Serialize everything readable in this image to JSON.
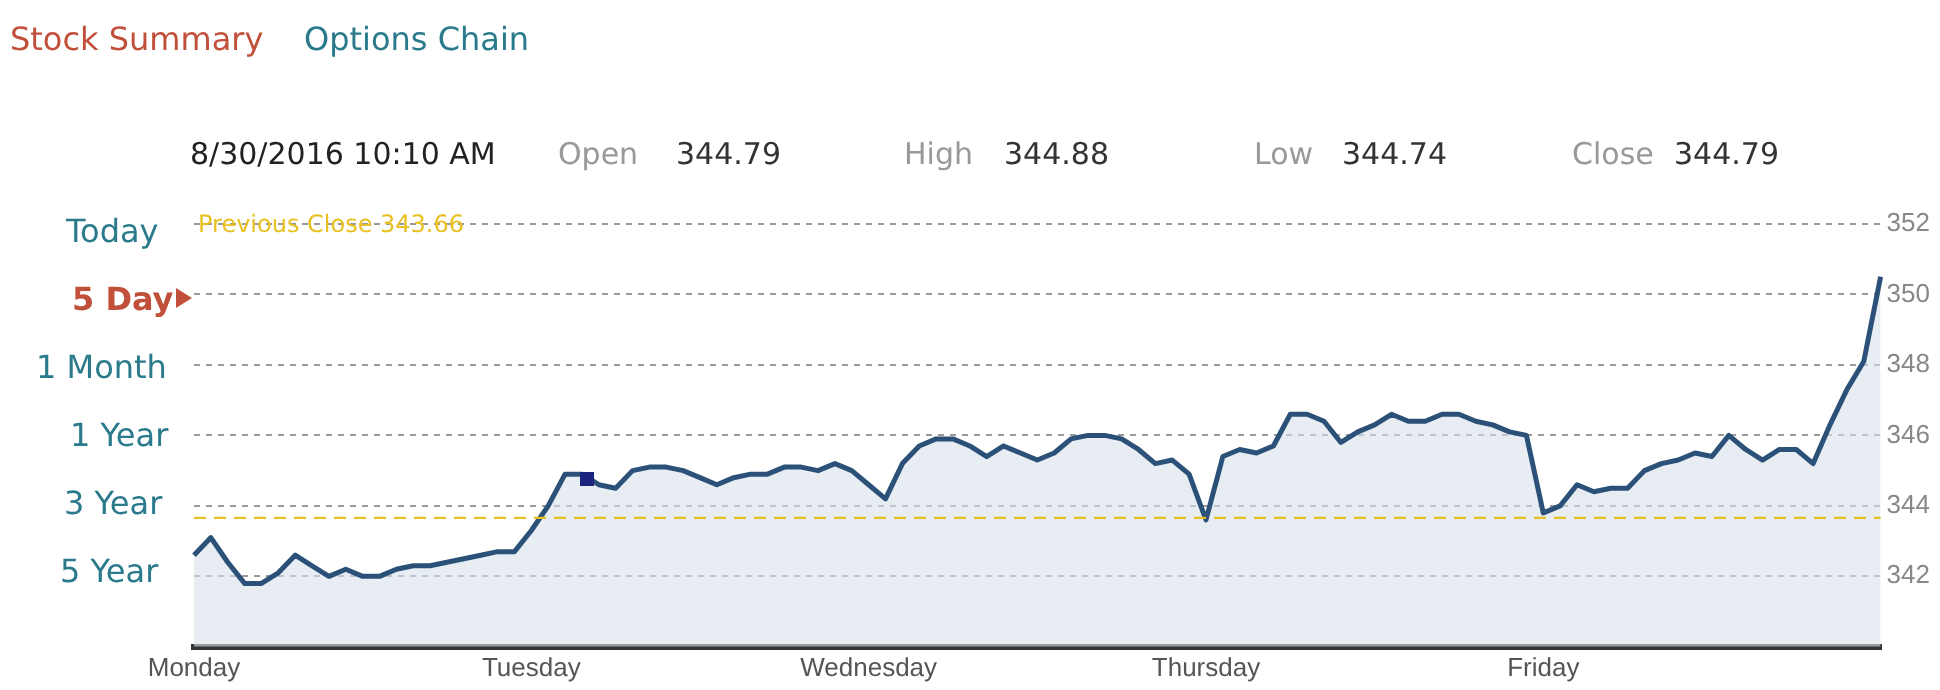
{
  "chart_data": {
    "type": "area",
    "color": "#2b5178",
    "annotations": [
      "Stock Summary",
      "Options Chain",
      "8/30/2016 10:10 AM",
      "Open",
      "344.79",
      "High",
      "344.88",
      "Low",
      "344.74",
      "Close",
      "344.79",
      "Today",
      "5 Day",
      "1 Month",
      "1 Year",
      "3 Year",
      "5 Year"
    ],
    "categories": [
      "Monday",
      null,
      null,
      null,
      null,
      null,
      null,
      null,
      null,
      null,
      null,
      null,
      null,
      null,
      null,
      null,
      null,
      null,
      null,
      null,
      "Tuesday",
      null,
      null,
      null,
      null,
      null,
      null,
      null,
      null,
      null,
      null,
      null,
      null,
      null,
      null,
      null,
      null,
      null,
      null,
      null,
      "Wednesday",
      null,
      null,
      null,
      null,
      null,
      null,
      null,
      null,
      null,
      null,
      null,
      null,
      null,
      null,
      null,
      null,
      null,
      null,
      null,
      "Thursday",
      null,
      null,
      null,
      null,
      null,
      null,
      null,
      null,
      null,
      null,
      null,
      null,
      null,
      null,
      null,
      null,
      null,
      null,
      null,
      "Friday",
      null,
      null,
      null,
      null,
      null,
      null,
      null,
      null,
      null,
      null,
      null,
      null,
      null,
      null,
      null,
      null,
      null,
      null,
      null,
      null
    ],
    "values": [
      342.6,
      343.1,
      342.4,
      341.8,
      341.8,
      342.1,
      342.6,
      342.3,
      342.0,
      342.2,
      342.0,
      342.0,
      342.2,
      342.3,
      342.3,
      342.4,
      342.5,
      342.6,
      342.7,
      342.7,
      343.3,
      344.0,
      344.9,
      344.9,
      344.6,
      344.5,
      345.0,
      345.1,
      345.1,
      345.0,
      344.8,
      344.6,
      344.8,
      344.9,
      344.9,
      345.1,
      345.1,
      345.0,
      345.2,
      345.0,
      344.6,
      344.2,
      345.2,
      345.7,
      345.9,
      345.9,
      345.7,
      345.4,
      345.7,
      345.5,
      345.3,
      345.5,
      345.9,
      346.0,
      346.0,
      345.9,
      345.6,
      345.2,
      345.3,
      344.9,
      343.6,
      345.4,
      345.6,
      345.5,
      345.7,
      346.6,
      346.6,
      346.4,
      345.8,
      346.1,
      346.3,
      346.6,
      346.4,
      346.4,
      346.6,
      346.6,
      346.4,
      346.3,
      346.1,
      346.0,
      343.8,
      344.0,
      344.6,
      344.4,
      344.5,
      344.5,
      345.0,
      345.2,
      345.3,
      345.5,
      345.4,
      346.0,
      345.6,
      345.3,
      345.6,
      345.6,
      345.2,
      346.3,
      347.3,
      348.1,
      350.5
    ],
    "ylim": [
      340,
      352
    ],
    "yticks": [
      342,
      344,
      346,
      348,
      350,
      352
    ],
    "grid": "y",
    "line_style": "solid",
    "marker": "none",
    "ref_lines": [
      {
        "axis": "y",
        "value": 343.66,
        "label": "Previous Close 343.66",
        "color": "#e8c020",
        "line_style": "dashed"
      }
    ]
  }
}
